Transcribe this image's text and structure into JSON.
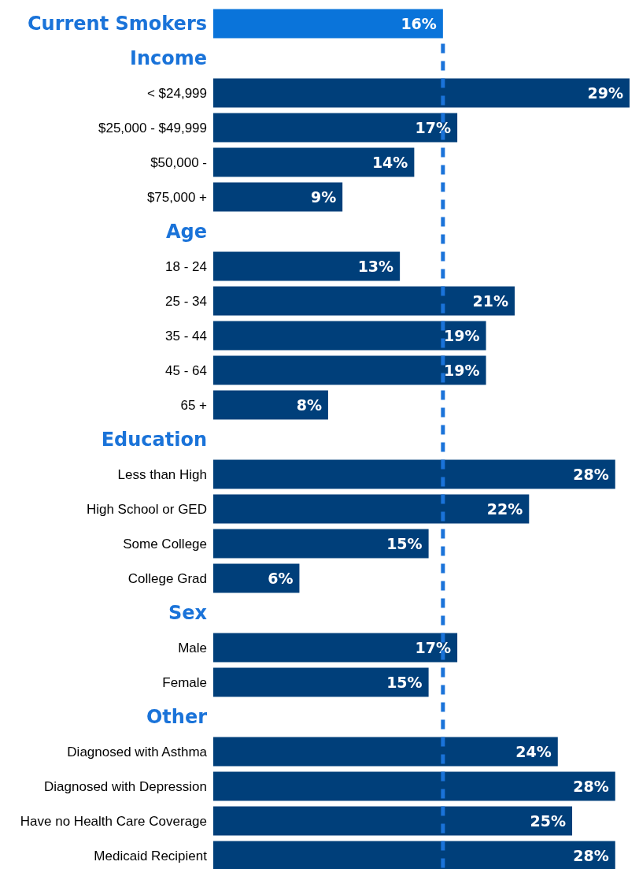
{
  "chart_data": {
    "type": "bar",
    "orientation": "horizontal",
    "categories": [
      "Current Smokers",
      "Income",
      "< $24,999",
      "$25,000 - $49,999",
      "$50,000 -",
      "$75,000 +",
      "Age",
      "18 - 24",
      "25 - 34",
      "35 - 44",
      "45 - 64",
      "65 +",
      "Education",
      "Less than High",
      "High School or GED",
      "Some College",
      "College Grad",
      "Sex",
      "Male",
      "Female",
      "Other",
      "Diagnosed with Asthma",
      "Diagnosed with Depression",
      "Have no Health Care Coverage",
      "Medicaid Recipient"
    ],
    "values": [
      16,
      null,
      29,
      17,
      14,
      9,
      null,
      13,
      21,
      19,
      19,
      8,
      null,
      28,
      22,
      15,
      6,
      null,
      17,
      15,
      null,
      24,
      28,
      25,
      28
    ],
    "value_labels": [
      "16%",
      null,
      "29%",
      "17%",
      "14%",
      "9%",
      null,
      "13%",
      "21%",
      "19%",
      "19%",
      "8%",
      null,
      "28%",
      "22%",
      "15%",
      "6%",
      null,
      "17%",
      "15%",
      null,
      "24%",
      "28%",
      "25%",
      "28%"
    ],
    "colors": [
      "#0a74da",
      null,
      "#003f7a",
      "#003f7a",
      "#003f7a",
      "#003f7a",
      null,
      "#003f7a",
      "#003f7a",
      "#003f7a",
      "#003f7a",
      "#003f7a",
      null,
      "#003f7a",
      "#003f7a",
      "#003f7a",
      "#003f7a",
      null,
      "#003f7a",
      "#003f7a",
      null,
      "#003f7a",
      "#003f7a",
      "#003f7a",
      "#003f7a"
    ],
    "xlim": [
      0,
      29
    ],
    "tick_labels": "y",
    "ref_lines": [
      {
        "axis": "x",
        "value": 16,
        "color": "#1a73d9",
        "line_style": "dashed"
      }
    ]
  }
}
